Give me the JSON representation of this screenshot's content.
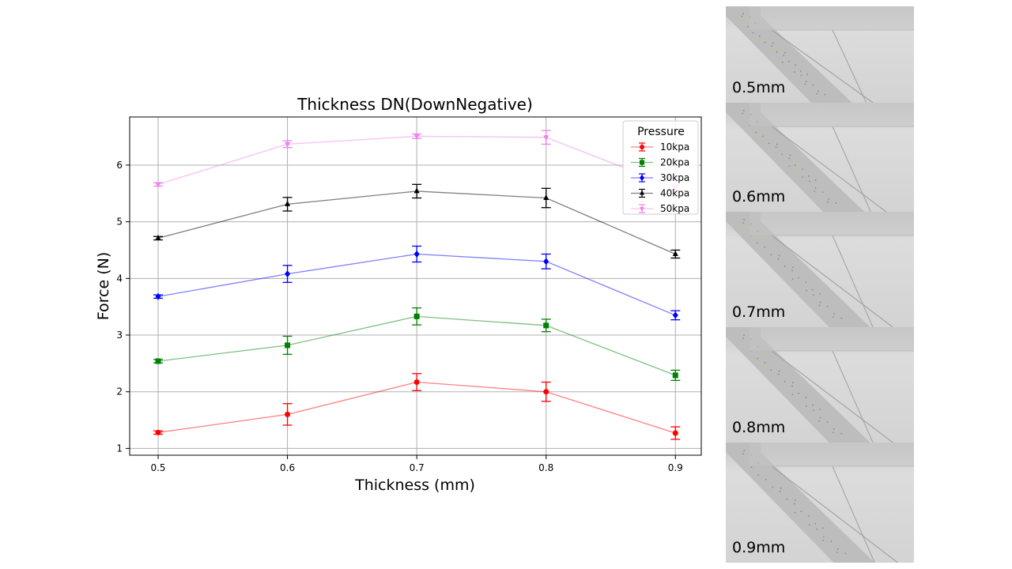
{
  "chart_data": {
    "type": "line",
    "title": "Thickness DN(DownNegative)",
    "xlabel": "Thickness (mm)",
    "ylabel": "Force (N)",
    "x": [
      0.5,
      0.6,
      0.7,
      0.8,
      0.9
    ],
    "xticks": [
      "0.5",
      "0.6",
      "0.7",
      "0.8",
      "0.9"
    ],
    "yticks": [
      "1",
      "2",
      "3",
      "4",
      "5",
      "6"
    ],
    "xlim": [
      0.478,
      0.92
    ],
    "ylim": [
      0.88,
      6.85
    ],
    "grid": true,
    "legend": {
      "title": "Pressure",
      "placement": "top-right"
    },
    "series": [
      {
        "name": "10kpa",
        "color": "#ff0000",
        "marker": "circle",
        "values": [
          1.28,
          1.6,
          2.17,
          2.0,
          1.27
        ],
        "errors": [
          0.03,
          0.19,
          0.15,
          0.17,
          0.11
        ]
      },
      {
        "name": "20kpa",
        "color": "#008000",
        "marker": "square",
        "values": [
          2.54,
          2.82,
          3.33,
          3.17,
          2.29
        ],
        "errors": [
          0.03,
          0.16,
          0.15,
          0.11,
          0.09
        ]
      },
      {
        "name": "30kpa",
        "color": "#0000ff",
        "marker": "diamond",
        "values": [
          3.68,
          4.08,
          4.43,
          4.3,
          3.35
        ],
        "errors": [
          0.03,
          0.15,
          0.14,
          0.13,
          0.08
        ]
      },
      {
        "name": "40kpa",
        "color": "#000000",
        "marker": "triangle-up",
        "values": [
          4.71,
          5.31,
          5.54,
          5.42,
          4.43
        ],
        "errors": [
          0.03,
          0.12,
          0.12,
          0.17,
          0.07
        ]
      },
      {
        "name": "50kpa",
        "color": "#ee82ee",
        "marker": "triangle-down",
        "values": [
          5.66,
          6.37,
          6.51,
          6.49,
          5.6
        ],
        "errors": [
          0.03,
          0.06,
          0.04,
          0.12,
          0.05
        ]
      }
    ]
  },
  "panels": [
    {
      "label": "0.5mm"
    },
    {
      "label": "0.6mm"
    },
    {
      "label": "0.7mm"
    },
    {
      "label": "0.8mm"
    },
    {
      "label": "0.9mm"
    }
  ]
}
